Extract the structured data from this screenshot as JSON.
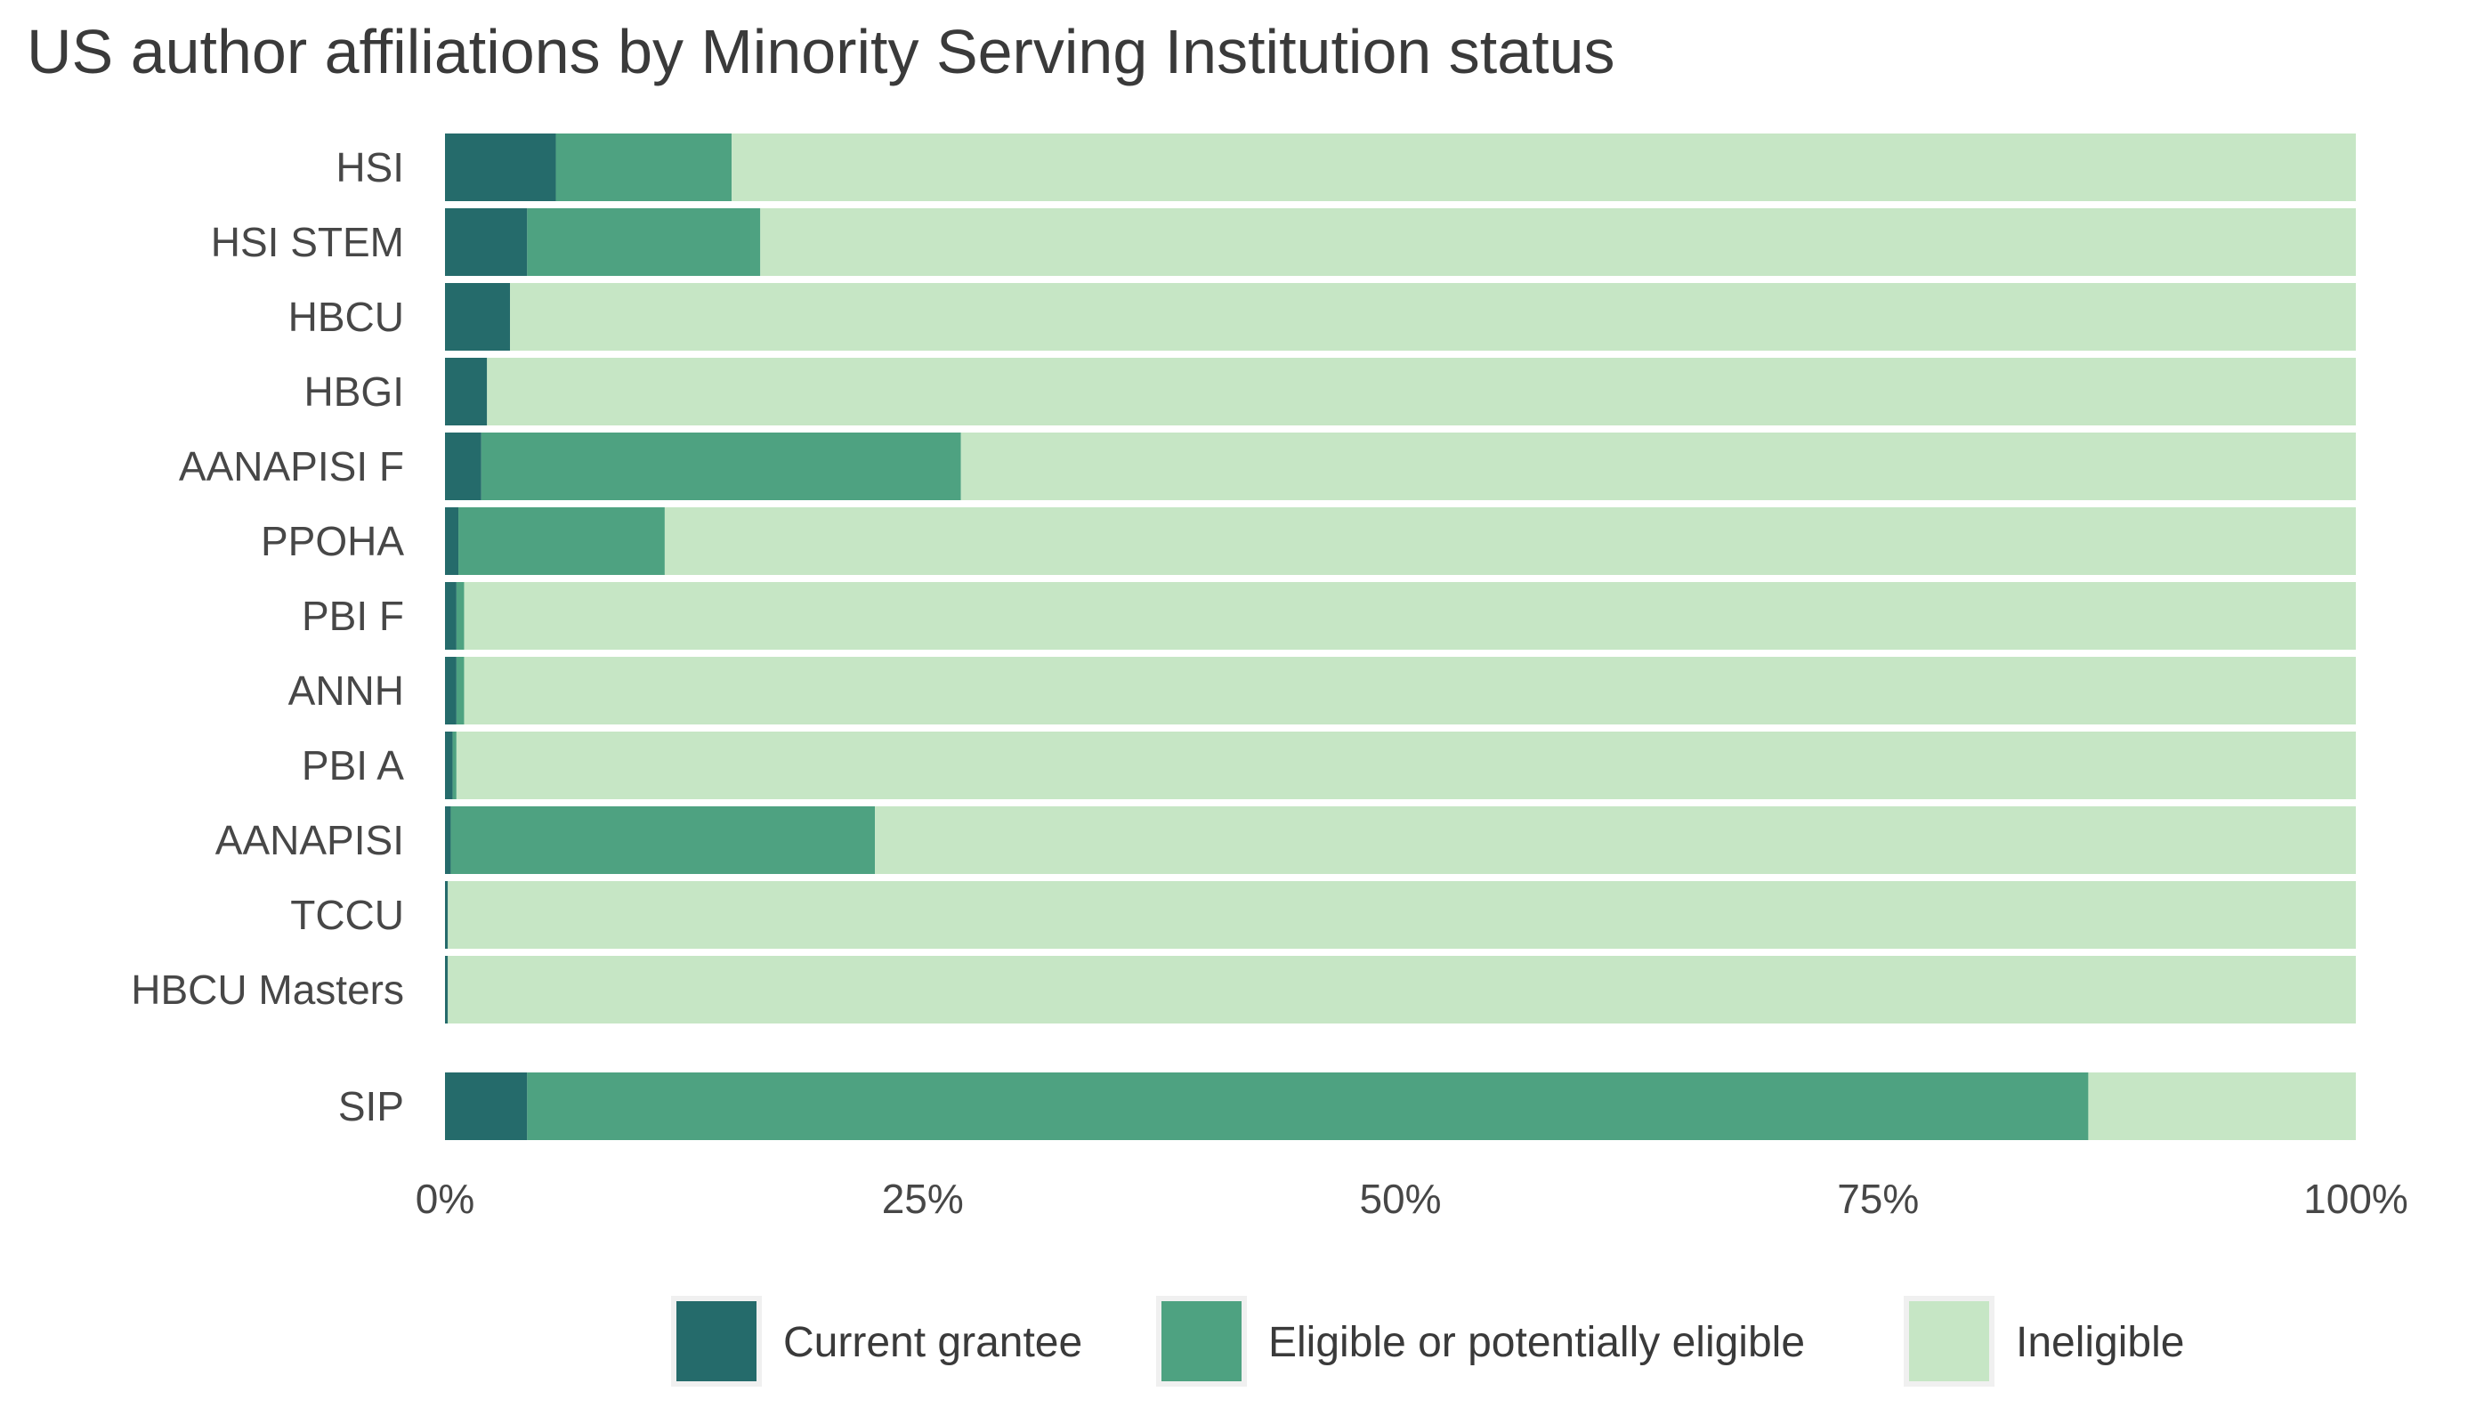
{
  "chart_data": {
    "type": "bar",
    "orientation": "horizontal",
    "stacked": true,
    "normalized": true,
    "title": "US author affiliations by Minority Serving Institution status",
    "xlabel": "",
    "ylabel": "",
    "xlim": [
      0,
      100
    ],
    "x_ticks": [
      0,
      25,
      50,
      75,
      100
    ],
    "x_tick_labels": [
      "0%",
      "25%",
      "50%",
      "75%",
      "100%"
    ],
    "grid": false,
    "legend_position": "bottom",
    "categories": [
      "HSI",
      "HSI STEM",
      "HBCU",
      "HBGI",
      "AANAPISI F",
      "PPOHA",
      "PBI F",
      "ANNH",
      "PBI A",
      "AANAPISI",
      "TCCU",
      "HBCU Masters",
      "SIP"
    ],
    "series": [
      {
        "name": "Current grantee",
        "color": "#256b6b",
        "values": [
          5.8,
          4.3,
          3.4,
          2.2,
          1.9,
          0.7,
          0.6,
          0.6,
          0.4,
          0.3,
          0.15,
          0.15,
          4.3
        ]
      },
      {
        "name": "Eligible or potentially eligible",
        "color": "#4ea281",
        "values": [
          9.2,
          12.2,
          0,
          0,
          25.1,
          10.8,
          0.4,
          0.4,
          0.2,
          22.2,
          0,
          0,
          81.7
        ]
      },
      {
        "name": "Ineligible",
        "color": "#c6e6c5",
        "values": [
          85.0,
          83.5,
          96.6,
          97.8,
          73.0,
          88.5,
          99.0,
          99.0,
          99.4,
          77.5,
          99.85,
          99.85,
          14.0
        ]
      }
    ]
  }
}
